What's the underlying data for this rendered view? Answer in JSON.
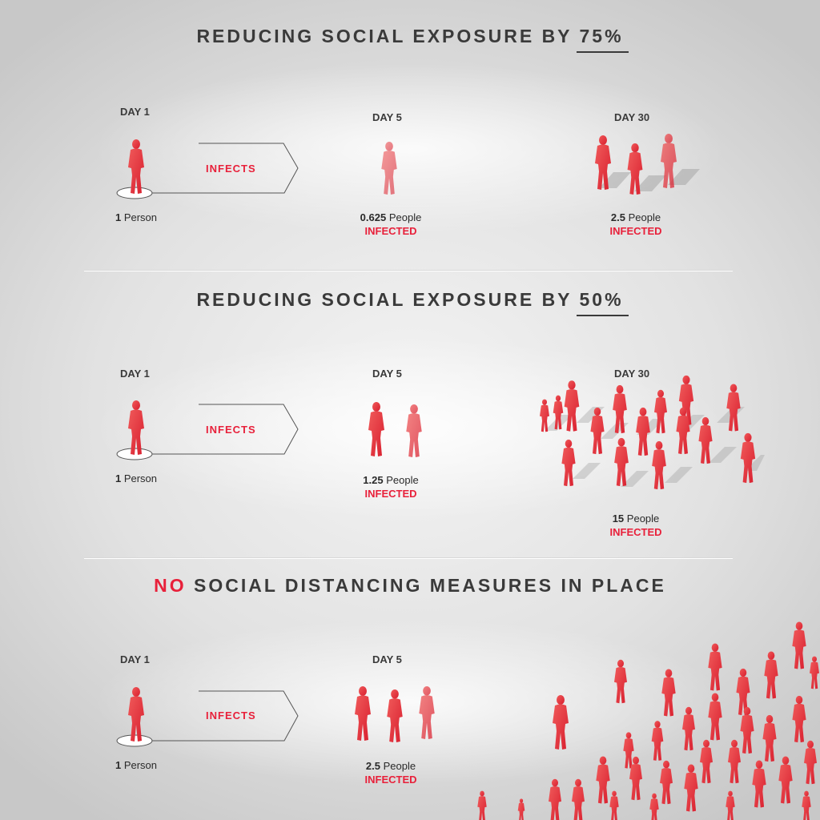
{
  "colors": {
    "accent": "#e8203a",
    "text": "#3a3a3a"
  },
  "sections": [
    {
      "heading_prefix": "REDUCING SOCIAL EXPOSURE BY ",
      "heading_pct": "75%",
      "day1": "DAY 1",
      "day5": "DAY 5",
      "day30": "DAY 30",
      "infects": "INFECTS",
      "day1_num": "1",
      "day1_unit": "Person",
      "day5_num": "0.625",
      "day5_unit": "People",
      "day5_status": "INFECTED",
      "day30_num": "2.5",
      "day30_unit": "People",
      "day30_status": "INFECTED"
    },
    {
      "heading_prefix": "REDUCING SOCIAL EXPOSURE BY ",
      "heading_pct": "50%",
      "day1": "DAY 1",
      "day5": "DAY 5",
      "day30": "DAY 30",
      "infects": "INFECTS",
      "day1_num": "1",
      "day1_unit": "Person",
      "day5_num": "1.25",
      "day5_unit": "People",
      "day5_status": "INFECTED",
      "day30_num": "15",
      "day30_unit": "People",
      "day30_status": "INFECTED"
    },
    {
      "heading_no": "NO",
      "heading_rest": " SOCIAL DISTANCING MEASURES IN PLACE",
      "day1": "DAY 1",
      "day5": "DAY 5",
      "infects": "INFECTS",
      "day1_num": "1",
      "day1_unit": "Person",
      "day5_num": "2.5",
      "day5_unit": "People",
      "day5_status": "INFECTED"
    }
  ],
  "icons": {
    "person": "person-silhouette-icon",
    "arrow": "arrow-outline-icon"
  }
}
